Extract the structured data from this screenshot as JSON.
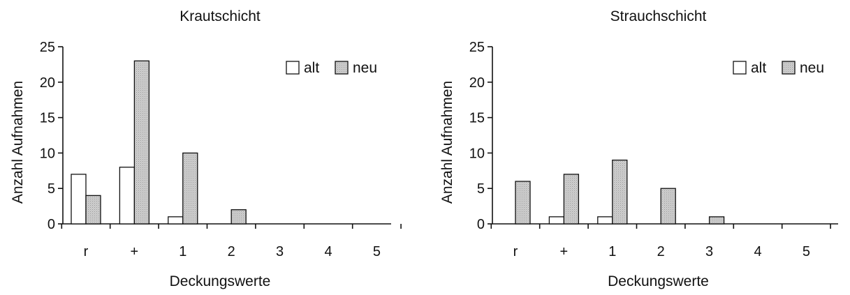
{
  "chart_data": [
    {
      "type": "bar",
      "title": "Krautschicht",
      "xlabel": "Deckungswerte",
      "ylabel": "Anzahl Aufnahmen",
      "ylim": [
        0,
        25
      ],
      "yticks": [
        "0",
        "5",
        "10",
        "15",
        "20",
        "25"
      ],
      "categories": [
        "r",
        "+",
        "1",
        "2",
        "3",
        "4",
        "5"
      ],
      "series": [
        {
          "name": "alt",
          "color": "#ffffff",
          "values": [
            7,
            8,
            1,
            0,
            0,
            0,
            0
          ]
        },
        {
          "name": "neu",
          "color": "#cfcfcf",
          "values": [
            4,
            23,
            10,
            2,
            0,
            0,
            0
          ]
        }
      ],
      "legend": "top-right",
      "grid": false
    },
    {
      "type": "bar",
      "title": "Strauchschicht",
      "xlabel": "Deckungswerte",
      "ylabel": "Anzahl Aufnahmen",
      "ylim": [
        0,
        25
      ],
      "yticks": [
        "0",
        "5",
        "10",
        "15",
        "20",
        "25"
      ],
      "categories": [
        "r",
        "+",
        "1",
        "2",
        "3",
        "4",
        "5"
      ],
      "series": [
        {
          "name": "alt",
          "color": "#ffffff",
          "values": [
            0,
            1,
            1,
            0,
            0,
            0,
            0
          ]
        },
        {
          "name": "neu",
          "color": "#cfcfcf",
          "values": [
            6,
            7,
            9,
            5,
            1,
            0,
            0
          ]
        }
      ],
      "legend": "top-right",
      "grid": false
    }
  ]
}
